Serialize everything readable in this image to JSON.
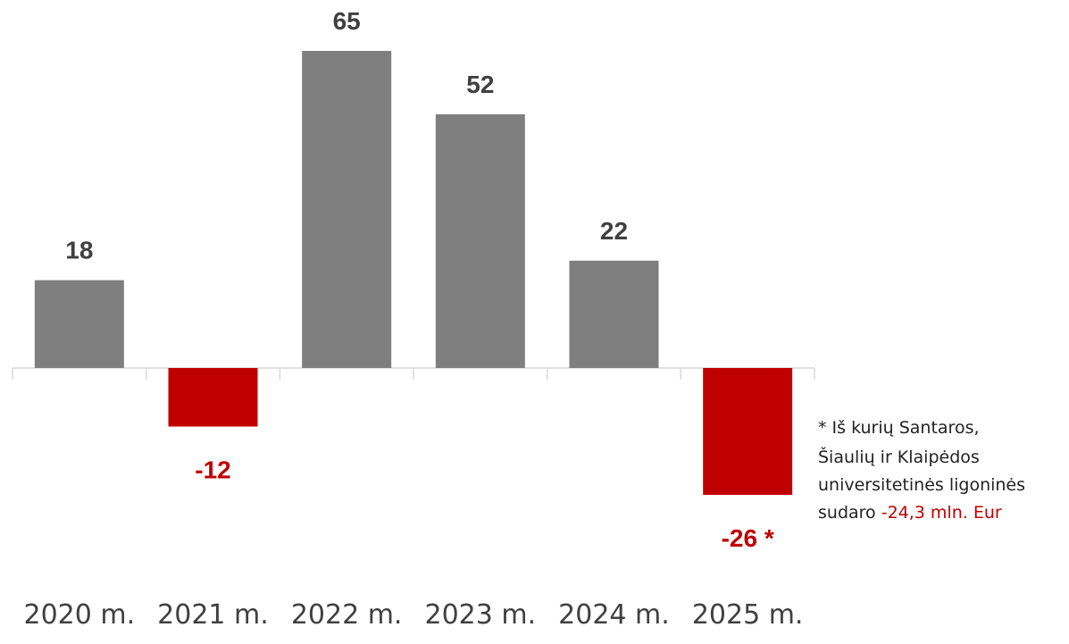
{
  "chart_data": {
    "type": "bar",
    "categories": [
      "2020 m.",
      "2021 m.",
      "2022 m.",
      "2023 m.",
      "2024 m.",
      "2025 m."
    ],
    "values": [
      18,
      -12,
      65,
      52,
      22,
      -26
    ],
    "value_labels": [
      "18",
      "-12",
      "65",
      "52",
      "22",
      "-26 *"
    ],
    "colors": [
      "#7f7f7f",
      "#c00000",
      "#7f7f7f",
      "#7f7f7f",
      "#7f7f7f",
      "#c00000"
    ],
    "label_colors": [
      "#404040",
      "#c00000",
      "#404040",
      "#404040",
      "#404040",
      "#c00000"
    ],
    "annotation": {
      "lines": [
        "*  Iš kurių Santaros,",
        "Šiaulių ir Klaipėdos",
        "universitetinės ligoninės",
        "sudaro"
      ],
      "highlight": "-24,3 mln. Eur",
      "highlight_color": "#c00000"
    }
  }
}
